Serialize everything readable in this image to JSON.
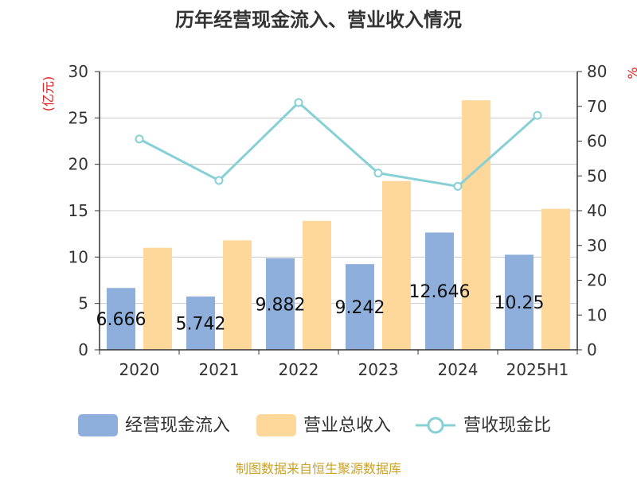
{
  "colors": {
    "cash_inflow": "#8eaedc",
    "revenue": "#fdd89a",
    "ratio": "#86d0d6",
    "grid": "#c8c8c8",
    "axis": "#333333",
    "unit": "#e02020",
    "footer": "#c9a227"
  },
  "chart_data": {
    "type": "bar",
    "title": "历年经营现金流入、营业收入情况",
    "categories": [
      "2020",
      "2021",
      "2022",
      "2023",
      "2024",
      "2025H1"
    ],
    "series": [
      {
        "name": "经营现金流入",
        "type": "bar",
        "axis": "left",
        "values": [
          6.666,
          5.742,
          9.882,
          9.242,
          12.646,
          10.25
        ],
        "labels": [
          "6.666",
          "5.742",
          "9.882",
          "9.242",
          "12.646",
          "10.25"
        ]
      },
      {
        "name": "营业总收入",
        "type": "bar",
        "axis": "left",
        "values": [
          11.0,
          11.8,
          13.9,
          18.2,
          26.9,
          15.2
        ]
      },
      {
        "name": "营收现金比",
        "type": "line",
        "axis": "right",
        "values": [
          60.6,
          48.7,
          71.1,
          50.8,
          47.0,
          67.4
        ]
      }
    ],
    "ylabel": "(亿元)",
    "y2label": "%",
    "ylim": [
      0,
      30
    ],
    "yticks": [
      "0",
      "5",
      "10",
      "15",
      "20",
      "25",
      "30"
    ],
    "y2lim": [
      0,
      80
    ],
    "y2ticks": [
      "0",
      "10",
      "20",
      "30",
      "40",
      "50",
      "60",
      "70",
      "80"
    ],
    "grid": true,
    "legend_position": "bottom"
  },
  "footer": "制图数据来自恒生聚源数据库"
}
